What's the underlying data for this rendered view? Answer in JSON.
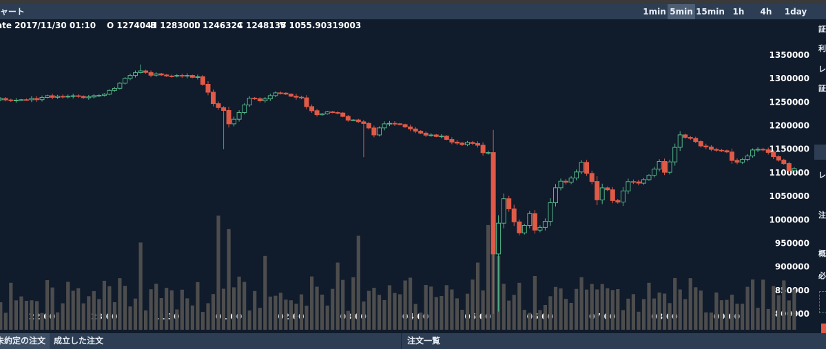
{
  "header": {
    "title": "チャート",
    "timeframes": [
      "1min",
      "5min",
      "15min",
      "1h",
      "4h",
      "1day"
    ],
    "active_timeframe": "5min"
  },
  "info": {
    "date": "ate 2017/11/30 01:10",
    "open": "O 1274041",
    "high": "H 1283000",
    "low": "L 1246324",
    "close": "C 1248135",
    "volume": "V 1055.90319003"
  },
  "right_panel": {
    "labels": [
      "証",
      "利",
      "レ",
      "証",
      "レ",
      "注",
      "概",
      "必"
    ]
  },
  "footer": {
    "tabs": [
      "未約定の注文",
      "成立した注文",
      "注文一覧"
    ],
    "active_tab": "未約定の注文"
  },
  "chart_data": {
    "type": "candlestick",
    "interval": "5min",
    "y_ticks": [
      1350000,
      1300000,
      1250000,
      1200000,
      1150000,
      1100000,
      1050000,
      1000000,
      950000,
      900000,
      850000,
      800000
    ],
    "ylim": [
      782000,
      1370000
    ],
    "x_ticks": [
      "22:00",
      "23:00",
      "11/30",
      "01:00",
      "02:00",
      "03:00",
      "04:00",
      "05:00",
      "06:00",
      "07:00",
      "08:00",
      "09:00"
    ],
    "x_tick_index": [
      0,
      12,
      24,
      36,
      48,
      60,
      72,
      84,
      96,
      108,
      120,
      132
    ],
    "first_index": -7.8,
    "colors": {
      "up": "#52b788",
      "down": "#e05a47",
      "volume": "#4d4d4d",
      "background": "#101b2b",
      "axis_text": "#ffffff"
    },
    "anchors": [
      [
        -8,
        1255000
      ],
      [
        -5,
        1256000
      ],
      [
        -2,
        1258000
      ],
      [
        0,
        1260000
      ],
      [
        4,
        1260000
      ],
      [
        8,
        1262000
      ],
      [
        11,
        1265000
      ],
      [
        14,
        1280000
      ],
      [
        17,
        1305000
      ],
      [
        19,
        1315000
      ],
      [
        21,
        1305000
      ],
      [
        23,
        1310000
      ],
      [
        25,
        1308000
      ],
      [
        28,
        1310000
      ],
      [
        30,
        1300000
      ],
      [
        32,
        1270000
      ],
      [
        33,
        1245000
      ],
      [
        35,
        1230000
      ],
      [
        36,
        1200000
      ],
      [
        37,
        1210000
      ],
      [
        38,
        1230000
      ],
      [
        40,
        1260000
      ],
      [
        42,
        1255000
      ],
      [
        44,
        1265000
      ],
      [
        46,
        1268000
      ],
      [
        48,
        1262000
      ],
      [
        50,
        1258000
      ],
      [
        51,
        1240000
      ],
      [
        53,
        1225000
      ],
      [
        55,
        1230000
      ],
      [
        57,
        1230000
      ],
      [
        59,
        1215000
      ],
      [
        61,
        1208000
      ],
      [
        63,
        1195000
      ],
      [
        64,
        1180000
      ],
      [
        65,
        1195000
      ],
      [
        67,
        1208000
      ],
      [
        69,
        1205000
      ],
      [
        71,
        1195000
      ],
      [
        73,
        1188000
      ],
      [
        75,
        1178000
      ],
      [
        77,
        1175000
      ],
      [
        79,
        1165000
      ],
      [
        80,
        1160000
      ],
      [
        81,
        1158000
      ],
      [
        82,
        1168000
      ],
      [
        84,
        1162000
      ],
      [
        85,
        1145000
      ],
      [
        86,
        1145000
      ],
      [
        87,
        930000
      ],
      [
        88,
        995000
      ],
      [
        89,
        1045000
      ],
      [
        90,
        1020000
      ],
      [
        91,
        995000
      ],
      [
        92,
        970000
      ],
      [
        93,
        985000
      ],
      [
        94,
        1010000
      ],
      [
        95,
        975000
      ],
      [
        96,
        980000
      ],
      [
        97,
        1000000
      ],
      [
        98,
        1040000
      ],
      [
        99,
        1070000
      ],
      [
        100,
        1085000
      ],
      [
        101,
        1080000
      ],
      [
        103,
        1105000
      ],
      [
        104,
        1120000
      ],
      [
        105,
        1095000
      ],
      [
        106,
        1080000
      ],
      [
        107,
        1040000
      ],
      [
        108,
        1065000
      ],
      [
        109,
        1060000
      ],
      [
        110,
        1040000
      ],
      [
        111,
        1035000
      ],
      [
        112,
        1065000
      ],
      [
        113,
        1085000
      ],
      [
        115,
        1080000
      ],
      [
        117,
        1095000
      ],
      [
        118,
        1110000
      ],
      [
        119,
        1120000
      ],
      [
        120,
        1100000
      ],
      [
        121,
        1120000
      ],
      [
        122,
        1150000
      ],
      [
        123,
        1180000
      ],
      [
        124,
        1175000
      ],
      [
        125,
        1170000
      ],
      [
        126,
        1165000
      ],
      [
        128,
        1155000
      ],
      [
        130,
        1150000
      ],
      [
        132,
        1145000
      ],
      [
        133,
        1130000
      ],
      [
        134,
        1120000
      ],
      [
        135,
        1125000
      ],
      [
        137,
        1145000
      ],
      [
        139,
        1148000
      ],
      [
        141,
        1135000
      ],
      [
        143,
        1120000
      ],
      [
        144,
        1108000
      ],
      [
        145,
        1110000
      ]
    ],
    "volume_spikes": {
      "19": 0.65,
      "34": 0.85,
      "36": 0.75,
      "43": 0.55,
      "57": 0.5,
      "61": 0.7,
      "84": 0.5,
      "86": 0.78,
      "87": 1.0,
      "88": 0.55,
      "92": 0.35,
      "95": 0.4,
      "107": 0.3,
      "117": 0.35,
      "123": 0.3,
      "136": 0.32,
      "145": 0.3
    }
  }
}
